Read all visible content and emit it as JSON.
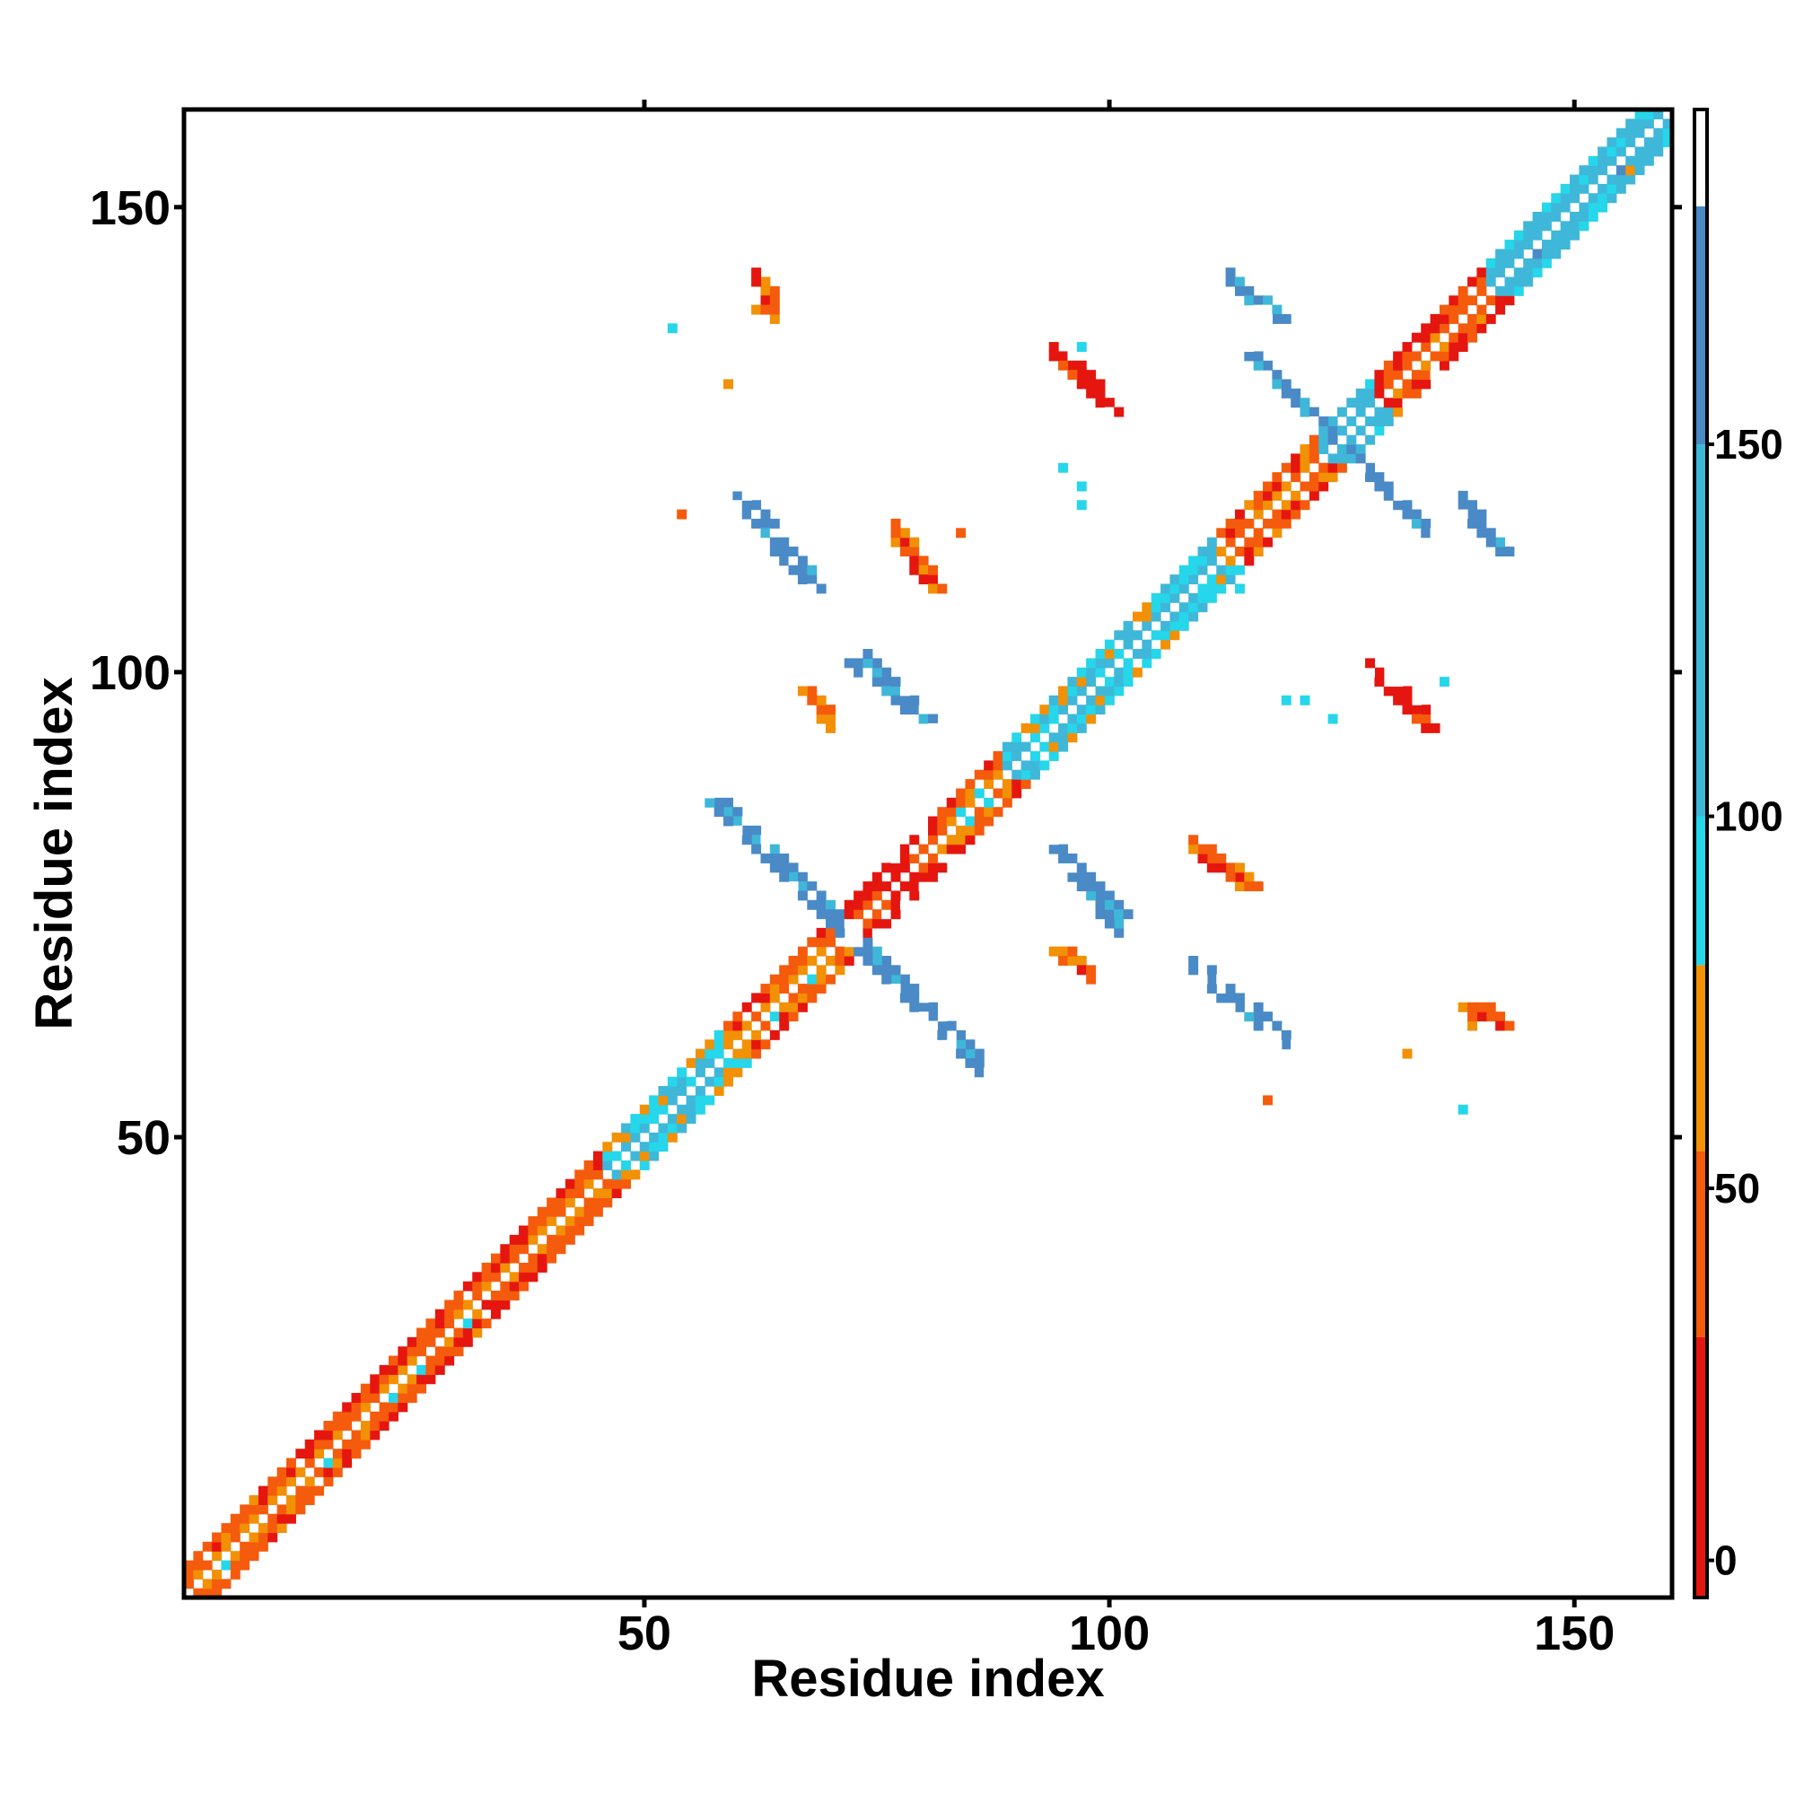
{
  "chart_data": {
    "type": "heatmap",
    "title": "",
    "xlabel": "Residue index",
    "ylabel": "Residue index",
    "xlim": [
      1,
      160
    ],
    "ylim": [
      1,
      160
    ],
    "x_ticks": [
      50,
      100,
      150
    ],
    "y_ticks": [
      50,
      100,
      150
    ],
    "grid": false,
    "colorbar": {
      "ticks": [
        0,
        50,
        100,
        150
      ],
      "range": [
        -5,
        195
      ],
      "bands": [
        {
          "from": -5,
          "to": 30,
          "color": "#e5160f"
        },
        {
          "from": 30,
          "to": 55,
          "color": "#f55b0c"
        },
        {
          "from": 55,
          "to": 80,
          "color": "#f29006"
        },
        {
          "from": 80,
          "to": 100,
          "color": "#26d6ea"
        },
        {
          "from": 100,
          "to": 150,
          "color": "#3fb7d9"
        },
        {
          "from": 150,
          "to": 182,
          "color": "#4a8ac7"
        },
        {
          "from": 182,
          "to": 195,
          "color": "#ffffff"
        }
      ]
    },
    "diagonal_bands": [
      {
        "from": 1,
        "to": 8,
        "value": 40
      },
      {
        "from": 8,
        "to": 45,
        "value": 35
      },
      {
        "from": 45,
        "to": 58,
        "value": 90
      },
      {
        "from": 58,
        "to": 70,
        "value": 40
      },
      {
        "from": 70,
        "to": 81,
        "value": 10
      },
      {
        "from": 81,
        "to": 88,
        "value": 45
      },
      {
        "from": 88,
        "to": 111,
        "value": 90
      },
      {
        "from": 111,
        "to": 122,
        "value": 40
      },
      {
        "from": 122,
        "to": 128,
        "value": 110
      },
      {
        "from": 128,
        "to": 140,
        "value": 25
      },
      {
        "from": 140,
        "to": 160,
        "value": 110
      }
    ],
    "off_diagonal_contacts": [
      {
        "x": [
          59,
          68
        ],
        "y": [
          119,
          109
        ],
        "value": 170
      },
      {
        "x": [
          72,
          81
        ],
        "y": [
          101,
          94
        ],
        "value": 170
      },
      {
        "x": [
          58,
          86
        ],
        "y": [
          86,
          57
        ],
        "value": 165
      },
      {
        "x": [
          94,
          101
        ],
        "y": [
          81,
          74
        ],
        "value": 165
      },
      {
        "x": [
          110,
          120
        ],
        "y": [
          68,
          59
        ],
        "value": 170
      },
      {
        "x": [
          113,
          118
        ],
        "y": [
          142,
          138
        ],
        "value": 160
      },
      {
        "x": [
          117,
          134
        ],
        "y": [
          132,
          115
        ],
        "value": 165
      },
      {
        "x": [
          138,
          142
        ],
        "y": [
          117,
          113
        ],
        "value": 170
      },
      {
        "x": [
          95,
          100
        ],
        "y": [
          134,
          128
        ],
        "value": 10
      },
      {
        "x": [
          129,
          134
        ],
        "y": [
          99,
          94
        ],
        "value": 10
      },
      {
        "x": [
          77,
          81
        ],
        "y": [
          114,
          109
        ],
        "value": 45
      },
      {
        "x": [
          110,
          115
        ],
        "y": [
          81,
          77
        ],
        "value": 45
      },
      {
        "x": [
          63,
          62
        ],
        "y": [
          141,
          139
        ],
        "value": 55
      },
      {
        "x": [
          138,
          142
        ],
        "y": [
          64,
          62
        ],
        "value": 40
      },
      {
        "x": [
          94,
          97
        ],
        "y": [
          70,
          68
        ],
        "value": 45
      },
      {
        "x": [
          67,
          69
        ],
        "y": [
          98,
          96
        ],
        "value": 45
      }
    ],
    "isolated_points": [
      {
        "x": 53,
        "y": 137,
        "value": 95
      },
      {
        "x": 59,
        "y": 131,
        "value": 60
      },
      {
        "x": 54,
        "y": 117,
        "value": 40
      },
      {
        "x": 84,
        "y": 115,
        "value": 40
      },
      {
        "x": 97,
        "y": 135,
        "value": 95
      },
      {
        "x": 95,
        "y": 122,
        "value": 95
      },
      {
        "x": 97,
        "y": 120,
        "value": 95
      },
      {
        "x": 97,
        "y": 118,
        "value": 95
      },
      {
        "x": 110,
        "y": 109,
        "value": 95
      },
      {
        "x": 114,
        "y": 109,
        "value": 95
      },
      {
        "x": 119,
        "y": 97,
        "value": 95
      },
      {
        "x": 121,
        "y": 97,
        "value": 95
      },
      {
        "x": 124,
        "y": 95,
        "value": 95
      },
      {
        "x": 136,
        "y": 99,
        "value": 95
      },
      {
        "x": 132,
        "y": 59,
        "value": 60
      },
      {
        "x": 117,
        "y": 54,
        "value": 45
      },
      {
        "x": 138,
        "y": 53,
        "value": 95
      }
    ]
  }
}
